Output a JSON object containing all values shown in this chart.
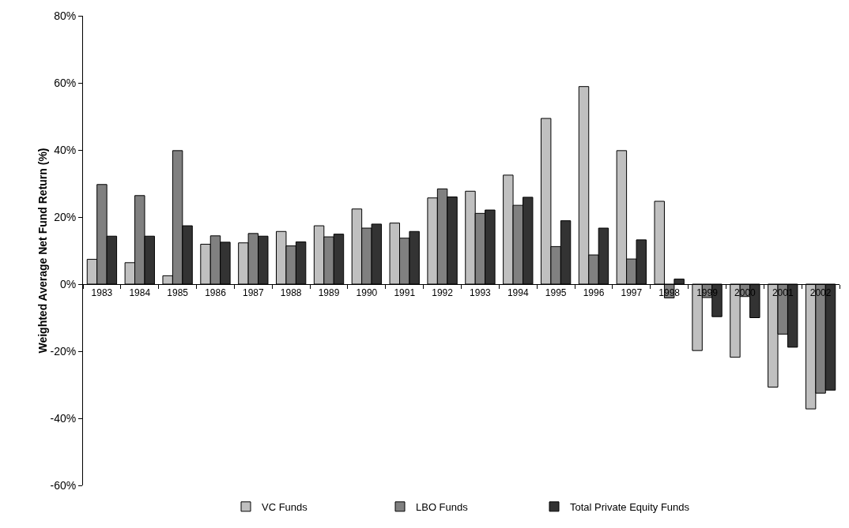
{
  "chart_data": {
    "type": "bar",
    "ylabel": "Weighted Average Net Fund Return (%)",
    "categories": [
      "1983",
      "1984",
      "1985",
      "1986",
      "1987",
      "1988",
      "1989",
      "1990",
      "1991",
      "1992",
      "1993",
      "1994",
      "1995",
      "1996",
      "1997",
      "1998",
      "1999",
      "2000",
      "2001",
      "2002"
    ],
    "series": [
      {
        "name": "VC Funds",
        "color": "#c0c0c0",
        "values": [
          7.4,
          6.4,
          2.5,
          11.9,
          12.3,
          15.7,
          17.4,
          22.4,
          18.2,
          25.7,
          27.7,
          32.5,
          49.4,
          58.9,
          39.8,
          24.7,
          -19.8,
          -21.8,
          -30.7,
          -37.2
        ]
      },
      {
        "name": "LBO Funds",
        "color": "#808080",
        "values": [
          29.7,
          26.4,
          39.8,
          14.4,
          15.1,
          11.4,
          14.1,
          16.7,
          13.7,
          28.4,
          21.1,
          23.5,
          11.2,
          8.7,
          7.5,
          -4.1,
          -4.0,
          -3.7,
          -14.9,
          -32.5
        ]
      },
      {
        "name": "Total Private Equity Funds",
        "color": "#333333",
        "values": [
          14.3,
          14.3,
          17.4,
          12.5,
          14.3,
          12.6,
          14.9,
          17.9,
          15.7,
          26.0,
          22.1,
          25.9,
          18.9,
          16.7,
          13.2,
          1.5,
          -9.7,
          -10.0,
          -18.8,
          -31.6
        ]
      }
    ],
    "ylim": [
      -60,
      80
    ],
    "yticks": [
      {
        "value": -60,
        "label": "-60%"
      },
      {
        "value": -40,
        "label": "-40%"
      },
      {
        "value": -20,
        "label": "-20%"
      },
      {
        "value": 0,
        "label": "0%"
      },
      {
        "value": 20,
        "label": "20%"
      },
      {
        "value": 40,
        "label": "40%"
      },
      {
        "value": 60,
        "label": "60%"
      },
      {
        "value": 80,
        "label": "80%"
      }
    ],
    "grid": false,
    "legend": "bottom"
  }
}
